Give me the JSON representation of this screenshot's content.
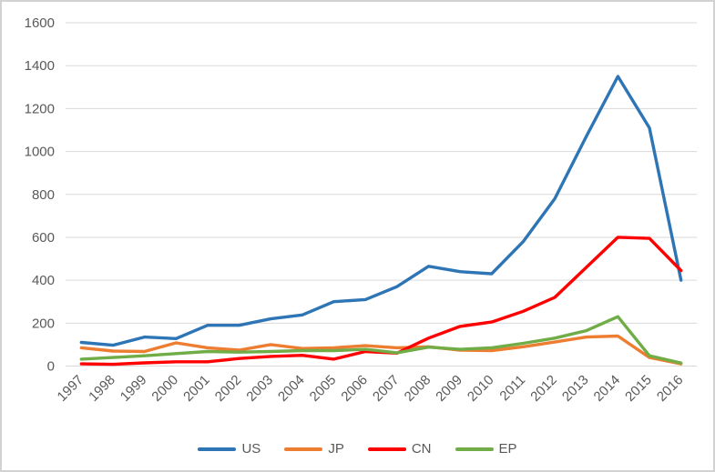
{
  "chart_data": {
    "type": "line",
    "title": "",
    "xlabel": "",
    "ylabel": "",
    "x_categories": [
      "1997",
      "1998",
      "1999",
      "2000",
      "2001",
      "2002",
      "2003",
      "2004",
      "2005",
      "2006",
      "2007",
      "2008",
      "2009",
      "2010",
      "2011",
      "2012",
      "2013",
      "2014",
      "2015",
      "2016"
    ],
    "y_axis": {
      "min": 0,
      "max": 1600,
      "step": 200,
      "tick_labels": [
        "0",
        "200",
        "400",
        "600",
        "800",
        "1000",
        "1200",
        "1400",
        "1600"
      ]
    },
    "grid": true,
    "legend_position": "bottom",
    "series": [
      {
        "name": "US",
        "color": "#2E75B6",
        "values": [
          110,
          97,
          135,
          128,
          190,
          190,
          220,
          238,
          300,
          310,
          370,
          465,
          440,
          430,
          580,
          780,
          1070,
          1350,
          1110,
          400
        ]
      },
      {
        "name": "JP",
        "color": "#ED7D31",
        "values": [
          85,
          70,
          68,
          108,
          85,
          74,
          100,
          82,
          85,
          95,
          85,
          90,
          74,
          72,
          90,
          112,
          135,
          140,
          40,
          10
        ]
      },
      {
        "name": "CN",
        "color": "#FF0000",
        "values": [
          10,
          8,
          15,
          20,
          20,
          35,
          45,
          50,
          32,
          68,
          60,
          130,
          185,
          205,
          255,
          320,
          460,
          600,
          595,
          445
        ]
      },
      {
        "name": "EP",
        "color": "#70AD47",
        "values": [
          32,
          40,
          48,
          58,
          68,
          65,
          68,
          72,
          72,
          78,
          62,
          88,
          78,
          85,
          106,
          130,
          165,
          230,
          48,
          14
        ]
      }
    ]
  },
  "colors": {
    "gridline": "#D9D9D9",
    "axis_text": "#595959",
    "frame_border": "#D2D2D2"
  }
}
